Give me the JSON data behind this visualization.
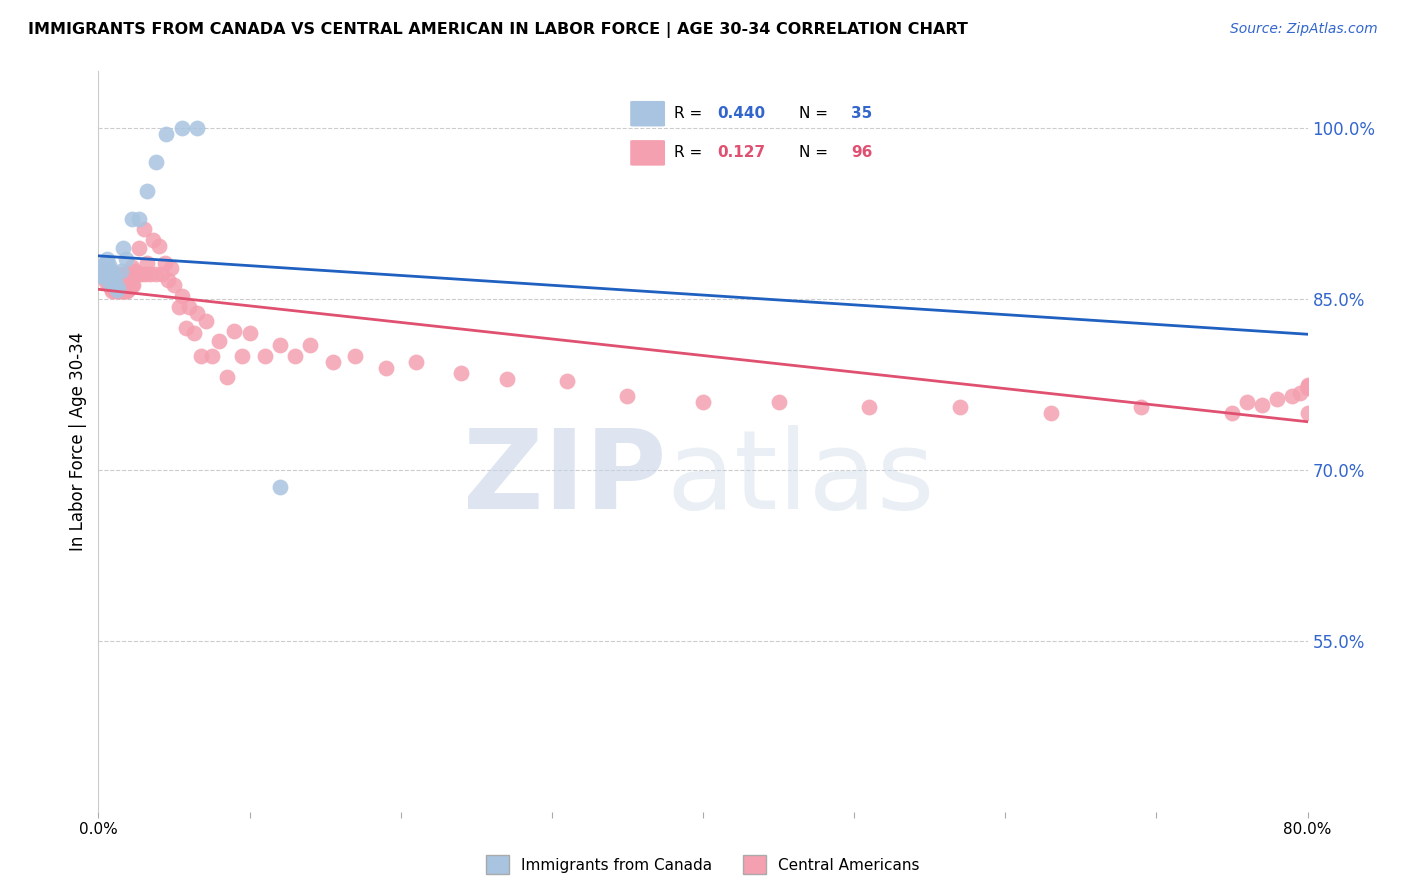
{
  "title": "IMMIGRANTS FROM CANADA VS CENTRAL AMERICAN IN LABOR FORCE | AGE 30-34 CORRELATION CHART",
  "source": "Source: ZipAtlas.com",
  "ylabel": "In Labor Force | Age 30-34",
  "ytick_labels": [
    "100.0%",
    "85.0%",
    "70.0%",
    "55.0%"
  ],
  "ytick_values": [
    1.0,
    0.85,
    0.7,
    0.55
  ],
  "xmin": 0.0,
  "xmax": 0.8,
  "ymin": 0.4,
  "ymax": 1.05,
  "legend1_label": "Immigrants from Canada",
  "legend2_label": "Central Americans",
  "R_canada": 0.44,
  "N_canada": 35,
  "R_central": 0.127,
  "N_central": 96,
  "canada_color": "#a8c4e0",
  "central_color": "#f4a0b0",
  "canada_line_color": "#2060c0",
  "central_line_color": "#e05070",
  "background_color": "#ffffff",
  "canada_x": [
    0.002,
    0.003,
    0.003,
    0.004,
    0.004,
    0.004,
    0.005,
    0.005,
    0.005,
    0.006,
    0.006,
    0.006,
    0.006,
    0.007,
    0.007,
    0.007,
    0.008,
    0.008,
    0.009,
    0.009,
    0.01,
    0.011,
    0.012,
    0.013,
    0.015,
    0.016,
    0.018,
    0.022,
    0.027,
    0.032,
    0.038,
    0.045,
    0.055,
    0.065,
    0.12
  ],
  "canada_y": [
    0.87,
    0.875,
    0.88,
    0.87,
    0.875,
    0.88,
    0.875,
    0.88,
    0.87,
    0.875,
    0.88,
    0.885,
    0.87,
    0.875,
    0.88,
    0.865,
    0.87,
    0.875,
    0.865,
    0.87,
    0.87,
    0.865,
    0.858,
    0.86,
    0.875,
    0.895,
    0.885,
    0.92,
    0.92,
    0.945,
    0.97,
    0.995,
    1.0,
    1.0,
    0.685
  ],
  "central_x": [
    0.003,
    0.004,
    0.005,
    0.005,
    0.006,
    0.006,
    0.007,
    0.007,
    0.008,
    0.008,
    0.009,
    0.009,
    0.01,
    0.01,
    0.011,
    0.011,
    0.012,
    0.012,
    0.013,
    0.013,
    0.014,
    0.014,
    0.015,
    0.015,
    0.016,
    0.016,
    0.017,
    0.018,
    0.018,
    0.019,
    0.02,
    0.02,
    0.021,
    0.022,
    0.022,
    0.023,
    0.024,
    0.025,
    0.026,
    0.027,
    0.028,
    0.03,
    0.031,
    0.032,
    0.034,
    0.036,
    0.038,
    0.04,
    0.042,
    0.044,
    0.046,
    0.048,
    0.05,
    0.053,
    0.055,
    0.058,
    0.06,
    0.063,
    0.065,
    0.068,
    0.071,
    0.075,
    0.08,
    0.085,
    0.09,
    0.095,
    0.1,
    0.11,
    0.12,
    0.13,
    0.14,
    0.155,
    0.17,
    0.19,
    0.21,
    0.24,
    0.27,
    0.31,
    0.35,
    0.4,
    0.45,
    0.51,
    0.57,
    0.63,
    0.69,
    0.75,
    0.76,
    0.77,
    0.78,
    0.79,
    0.795,
    0.8,
    0.8,
    0.8,
    0.8,
    0.8
  ],
  "central_y": [
    0.873,
    0.876,
    0.865,
    0.873,
    0.868,
    0.876,
    0.862,
    0.872,
    0.86,
    0.87,
    0.857,
    0.866,
    0.862,
    0.872,
    0.857,
    0.867,
    0.862,
    0.872,
    0.857,
    0.87,
    0.857,
    0.866,
    0.857,
    0.872,
    0.857,
    0.87,
    0.862,
    0.857,
    0.87,
    0.857,
    0.862,
    0.872,
    0.86,
    0.862,
    0.878,
    0.862,
    0.875,
    0.872,
    0.872,
    0.895,
    0.872,
    0.912,
    0.872,
    0.882,
    0.872,
    0.902,
    0.872,
    0.897,
    0.872,
    0.882,
    0.867,
    0.877,
    0.862,
    0.843,
    0.853,
    0.825,
    0.843,
    0.82,
    0.838,
    0.8,
    0.831,
    0.8,
    0.813,
    0.782,
    0.822,
    0.8,
    0.82,
    0.8,
    0.81,
    0.8,
    0.81,
    0.795,
    0.8,
    0.79,
    0.795,
    0.785,
    0.78,
    0.778,
    0.765,
    0.76,
    0.76,
    0.755,
    0.755,
    0.75,
    0.755,
    0.75,
    0.76,
    0.757,
    0.762,
    0.765,
    0.768,
    0.772,
    0.773,
    0.774,
    0.775,
    0.75
  ]
}
